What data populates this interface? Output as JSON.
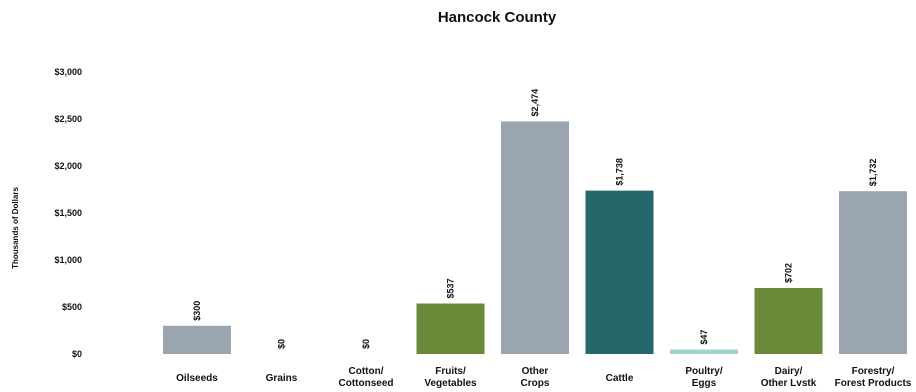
{
  "chart_data": {
    "type": "bar",
    "title": "Hancock County",
    "xlabel": "",
    "ylabel": "Thousands of Dollars",
    "ylim": [
      0,
      3000
    ],
    "yticks": [
      0,
      500,
      1000,
      1500,
      2000,
      2500,
      3000
    ],
    "ytick_labels": [
      "$0",
      "$500",
      "$1,000",
      "$1,500",
      "$2,000",
      "$2,500",
      "$3,000"
    ],
    "grid": false,
    "legend": "none",
    "categories": [
      [
        "Oilseeds"
      ],
      [
        "Grains"
      ],
      [
        "Cotton/",
        "Cottonseed"
      ],
      [
        "Fruits/",
        "Vegetables"
      ],
      [
        "Other",
        "Crops"
      ],
      [
        "Cattle"
      ],
      [
        "Poultry/",
        "Eggs"
      ],
      [
        "Dairy/",
        "Other Lvstk"
      ],
      [
        "Forestry/",
        "Forest Products"
      ]
    ],
    "values": [
      300,
      0,
      0,
      537,
      2474,
      1738,
      47,
      702,
      1732
    ],
    "data_labels": [
      "$300",
      "$0",
      "$0",
      "$537",
      "$2,474",
      "$1,738",
      "$47",
      "$702",
      "$1,732"
    ],
    "colors": [
      "#9aa5af",
      "#9aa5af",
      "#9aa5af",
      "#6a8a3a",
      "#9aa5af",
      "#26676c",
      "#9dd3cf",
      "#6a8a3a",
      "#9aa5af"
    ]
  }
}
